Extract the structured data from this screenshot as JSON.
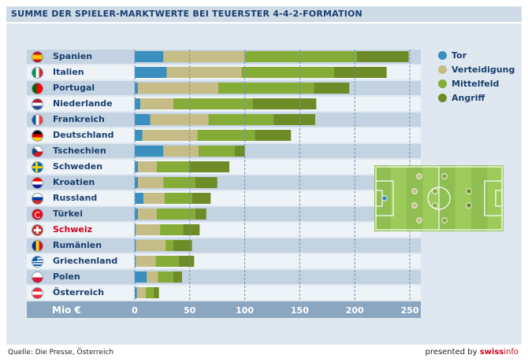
{
  "header": {
    "title": "SUMME DER SPIELER-MARKTWERTE BEI TEUERSTER 4-4-2-FORMATION"
  },
  "footer": {
    "source": "Quelle: Die Presse, Österreich",
    "presented_by": "presented by",
    "brand_swiss": "swiss",
    "brand_info": "info"
  },
  "colors": {
    "tor": "#3a8fbf",
    "verteidigung": "#c6bd86",
    "mittelfeld": "#86ac38",
    "angriff": "#6d8c28",
    "row_light": "#c3d3e1",
    "row_dark": "#eef3f8",
    "axis_bar": "#8aa6c0",
    "label": "#1b3f6e",
    "highlight": "#d0021b"
  },
  "chart_data": {
    "type": "bar",
    "orientation": "horizontal",
    "stacked": true,
    "title": "SUMME DER SPIELER-MARKTWERTE BEI TEUERSTER 4-4-2-FORMATION",
    "xlabel": "Mio €",
    "xlim": [
      0,
      250
    ],
    "xticks": [
      0,
      50,
      100,
      150,
      200,
      250
    ],
    "grid": "vertical dashed",
    "legend_position": "right",
    "categories": [
      "Spanien",
      "Italien",
      "Portugal",
      "Niederlande",
      "Frankreich",
      "Deutschland",
      "Tschechien",
      "Schweden",
      "Kroatien",
      "Russland",
      "Türkei",
      "Schweiz",
      "Rumänien",
      "Griechenland",
      "Polen",
      "Österreich"
    ],
    "highlight_category": "Schweiz",
    "flags": [
      "es",
      "it",
      "pt",
      "nl",
      "fr",
      "de",
      "cz",
      "se",
      "hr",
      "ru",
      "tr",
      "ch",
      "ro",
      "gr",
      "pl",
      "at"
    ],
    "series": [
      {
        "name": "Tor",
        "values": [
          26,
          29,
          3,
          5,
          14,
          7,
          26,
          3,
          3,
          8,
          3,
          1,
          1,
          1,
          11,
          2
        ]
      },
      {
        "name": "Verteidigung",
        "values": [
          74,
          68,
          73,
          30,
          53,
          50,
          32,
          17,
          23,
          19,
          17,
          22,
          27,
          18,
          10,
          8
        ]
      },
      {
        "name": "Mittelfeld",
        "values": [
          102,
          84,
          87,
          72,
          59,
          52,
          33,
          29,
          29,
          25,
          35,
          21,
          7,
          21,
          14,
          7
        ]
      },
      {
        "name": "Angriff",
        "values": [
          47,
          48,
          32,
          58,
          38,
          33,
          9,
          37,
          20,
          17,
          10,
          15,
          17,
          14,
          8,
          5
        ]
      }
    ]
  }
}
